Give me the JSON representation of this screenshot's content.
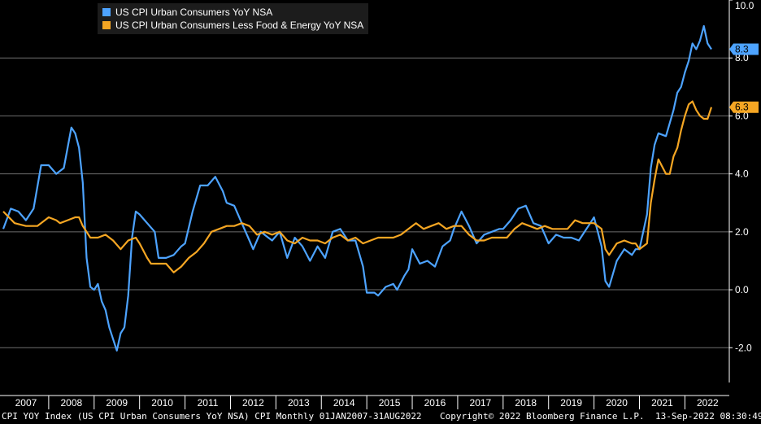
{
  "chart_data": {
    "type": "line",
    "title": "",
    "xlabel": "",
    "ylabel": "",
    "x_range": [
      "2007-01",
      "2022-08"
    ],
    "ylim": [
      -3.2,
      10.0
    ],
    "y_ticks": [
      "10.0",
      "8.0",
      "6.0",
      "4.0",
      "2.0",
      "0.0",
      "-2.0"
    ],
    "x_ticks": [
      "2007",
      "2008",
      "2009",
      "2010",
      "2011",
      "2012",
      "2013",
      "2014",
      "2015",
      "2016",
      "2017",
      "2018",
      "2019",
      "2020",
      "2021",
      "2022"
    ],
    "grid": "horizontal",
    "legend_position": "top-left",
    "series": [
      {
        "name": "US CPI Urban Consumers YoY NSA",
        "color": "#4da3ff",
        "last_label": "8.3",
        "points": [
          [
            "2007-01",
            2.1
          ],
          [
            "2007-03",
            2.8
          ],
          [
            "2007-05",
            2.7
          ],
          [
            "2007-07",
            2.4
          ],
          [
            "2007-09",
            2.8
          ],
          [
            "2007-11",
            4.3
          ],
          [
            "2008-01",
            4.3
          ],
          [
            "2008-03",
            4.0
          ],
          [
            "2008-05",
            4.2
          ],
          [
            "2008-07",
            5.6
          ],
          [
            "2008-08",
            5.4
          ],
          [
            "2008-09",
            4.9
          ],
          [
            "2008-10",
            3.7
          ],
          [
            "2008-11",
            1.1
          ],
          [
            "2008-12",
            0.1
          ],
          [
            "2009-01",
            0.0
          ],
          [
            "2009-02",
            0.2
          ],
          [
            "2009-03",
            -0.4
          ],
          [
            "2009-04",
            -0.7
          ],
          [
            "2009-05",
            -1.3
          ],
          [
            "2009-07",
            -2.1
          ],
          [
            "2009-08",
            -1.5
          ],
          [
            "2009-09",
            -1.3
          ],
          [
            "2009-10",
            -0.2
          ],
          [
            "2009-11",
            1.8
          ],
          [
            "2009-12",
            2.7
          ],
          [
            "2010-01",
            2.6
          ],
          [
            "2010-03",
            2.3
          ],
          [
            "2010-05",
            2.0
          ],
          [
            "2010-06",
            1.1
          ],
          [
            "2010-08",
            1.1
          ],
          [
            "2010-10",
            1.2
          ],
          [
            "2010-12",
            1.5
          ],
          [
            "2011-01",
            1.6
          ],
          [
            "2011-03",
            2.7
          ],
          [
            "2011-05",
            3.6
          ],
          [
            "2011-07",
            3.6
          ],
          [
            "2011-09",
            3.9
          ],
          [
            "2011-11",
            3.4
          ],
          [
            "2011-12",
            3.0
          ],
          [
            "2012-02",
            2.9
          ],
          [
            "2012-04",
            2.3
          ],
          [
            "2012-06",
            1.7
          ],
          [
            "2012-07",
            1.4
          ],
          [
            "2012-09",
            2.0
          ],
          [
            "2012-11",
            1.8
          ],
          [
            "2012-12",
            1.7
          ],
          [
            "2013-02",
            2.0
          ],
          [
            "2013-04",
            1.1
          ],
          [
            "2013-06",
            1.8
          ],
          [
            "2013-08",
            1.5
          ],
          [
            "2013-10",
            1.0
          ],
          [
            "2013-12",
            1.5
          ],
          [
            "2014-02",
            1.1
          ],
          [
            "2014-04",
            2.0
          ],
          [
            "2014-06",
            2.1
          ],
          [
            "2014-08",
            1.7
          ],
          [
            "2014-10",
            1.7
          ],
          [
            "2014-12",
            0.8
          ],
          [
            "2015-01",
            -0.1
          ],
          [
            "2015-03",
            -0.1
          ],
          [
            "2015-04",
            -0.2
          ],
          [
            "2015-06",
            0.1
          ],
          [
            "2015-08",
            0.2
          ],
          [
            "2015-09",
            0.0
          ],
          [
            "2015-11",
            0.5
          ],
          [
            "2015-12",
            0.7
          ],
          [
            "2016-01",
            1.4
          ],
          [
            "2016-03",
            0.9
          ],
          [
            "2016-05",
            1.0
          ],
          [
            "2016-07",
            0.8
          ],
          [
            "2016-09",
            1.5
          ],
          [
            "2016-11",
            1.7
          ],
          [
            "2016-12",
            2.1
          ],
          [
            "2017-02",
            2.7
          ],
          [
            "2017-04",
            2.2
          ],
          [
            "2017-06",
            1.6
          ],
          [
            "2017-08",
            1.9
          ],
          [
            "2017-10",
            2.0
          ],
          [
            "2017-12",
            2.1
          ],
          [
            "2018-01",
            2.1
          ],
          [
            "2018-03",
            2.4
          ],
          [
            "2018-05",
            2.8
          ],
          [
            "2018-07",
            2.9
          ],
          [
            "2018-09",
            2.3
          ],
          [
            "2018-11",
            2.2
          ],
          [
            "2018-12",
            1.9
          ],
          [
            "2019-01",
            1.6
          ],
          [
            "2019-03",
            1.9
          ],
          [
            "2019-05",
            1.8
          ],
          [
            "2019-07",
            1.8
          ],
          [
            "2019-09",
            1.7
          ],
          [
            "2019-11",
            2.1
          ],
          [
            "2019-12",
            2.3
          ],
          [
            "2020-01",
            2.5
          ],
          [
            "2020-03",
            1.5
          ],
          [
            "2020-04",
            0.3
          ],
          [
            "2020-05",
            0.1
          ],
          [
            "2020-07",
            1.0
          ],
          [
            "2020-09",
            1.4
          ],
          [
            "2020-11",
            1.2
          ],
          [
            "2020-12",
            1.4
          ],
          [
            "2021-01",
            1.4
          ],
          [
            "2021-03",
            2.6
          ],
          [
            "2021-04",
            4.2
          ],
          [
            "2021-05",
            5.0
          ],
          [
            "2021-06",
            5.4
          ],
          [
            "2021-08",
            5.3
          ],
          [
            "2021-10",
            6.2
          ],
          [
            "2021-11",
            6.8
          ],
          [
            "2021-12",
            7.0
          ],
          [
            "2022-01",
            7.5
          ],
          [
            "2022-02",
            7.9
          ],
          [
            "2022-03",
            8.5
          ],
          [
            "2022-04",
            8.3
          ],
          [
            "2022-05",
            8.6
          ],
          [
            "2022-06",
            9.1
          ],
          [
            "2022-07",
            8.5
          ],
          [
            "2022-08",
            8.3
          ]
        ]
      },
      {
        "name": "US CPI Urban Consumers Less Food & Energy YoY NSA",
        "color": "#f5a623",
        "last_label": "6.3",
        "points": [
          [
            "2007-01",
            2.7
          ],
          [
            "2007-04",
            2.3
          ],
          [
            "2007-07",
            2.2
          ],
          [
            "2007-10",
            2.2
          ],
          [
            "2007-12",
            2.4
          ],
          [
            "2008-01",
            2.5
          ],
          [
            "2008-03",
            2.4
          ],
          [
            "2008-04",
            2.3
          ],
          [
            "2008-06",
            2.4
          ],
          [
            "2008-08",
            2.5
          ],
          [
            "2008-09",
            2.5
          ],
          [
            "2008-10",
            2.2
          ],
          [
            "2008-11",
            2.0
          ],
          [
            "2008-12",
            1.8
          ],
          [
            "2009-02",
            1.8
          ],
          [
            "2009-04",
            1.9
          ],
          [
            "2009-06",
            1.7
          ],
          [
            "2009-08",
            1.4
          ],
          [
            "2009-10",
            1.7
          ],
          [
            "2009-12",
            1.8
          ],
          [
            "2010-01",
            1.6
          ],
          [
            "2010-03",
            1.1
          ],
          [
            "2010-04",
            0.9
          ],
          [
            "2010-06",
            0.9
          ],
          [
            "2010-08",
            0.9
          ],
          [
            "2010-10",
            0.6
          ],
          [
            "2010-12",
            0.8
          ],
          [
            "2011-02",
            1.1
          ],
          [
            "2011-04",
            1.3
          ],
          [
            "2011-06",
            1.6
          ],
          [
            "2011-08",
            2.0
          ],
          [
            "2011-10",
            2.1
          ],
          [
            "2011-12",
            2.2
          ],
          [
            "2012-02",
            2.2
          ],
          [
            "2012-04",
            2.3
          ],
          [
            "2012-06",
            2.2
          ],
          [
            "2012-08",
            1.9
          ],
          [
            "2012-10",
            2.0
          ],
          [
            "2012-12",
            1.9
          ],
          [
            "2013-02",
            2.0
          ],
          [
            "2013-04",
            1.7
          ],
          [
            "2013-06",
            1.6
          ],
          [
            "2013-08",
            1.8
          ],
          [
            "2013-10",
            1.7
          ],
          [
            "2013-12",
            1.7
          ],
          [
            "2014-02",
            1.6
          ],
          [
            "2014-04",
            1.8
          ],
          [
            "2014-06",
            1.9
          ],
          [
            "2014-08",
            1.7
          ],
          [
            "2014-10",
            1.8
          ],
          [
            "2014-12",
            1.6
          ],
          [
            "2015-02",
            1.7
          ],
          [
            "2015-04",
            1.8
          ],
          [
            "2015-06",
            1.8
          ],
          [
            "2015-08",
            1.8
          ],
          [
            "2015-10",
            1.9
          ],
          [
            "2015-12",
            2.1
          ],
          [
            "2016-02",
            2.3
          ],
          [
            "2016-04",
            2.1
          ],
          [
            "2016-06",
            2.2
          ],
          [
            "2016-08",
            2.3
          ],
          [
            "2016-10",
            2.1
          ],
          [
            "2016-12",
            2.2
          ],
          [
            "2017-02",
            2.2
          ],
          [
            "2017-04",
            1.9
          ],
          [
            "2017-06",
            1.7
          ],
          [
            "2017-08",
            1.7
          ],
          [
            "2017-10",
            1.8
          ],
          [
            "2017-12",
            1.8
          ],
          [
            "2018-02",
            1.8
          ],
          [
            "2018-04",
            2.1
          ],
          [
            "2018-06",
            2.3
          ],
          [
            "2018-08",
            2.2
          ],
          [
            "2018-10",
            2.1
          ],
          [
            "2018-12",
            2.2
          ],
          [
            "2019-02",
            2.1
          ],
          [
            "2019-04",
            2.1
          ],
          [
            "2019-06",
            2.1
          ],
          [
            "2019-08",
            2.4
          ],
          [
            "2019-10",
            2.3
          ],
          [
            "2019-12",
            2.3
          ],
          [
            "2020-01",
            2.3
          ],
          [
            "2020-03",
            2.1
          ],
          [
            "2020-04",
            1.4
          ],
          [
            "2020-05",
            1.2
          ],
          [
            "2020-07",
            1.6
          ],
          [
            "2020-09",
            1.7
          ],
          [
            "2020-11",
            1.6
          ],
          [
            "2020-12",
            1.6
          ],
          [
            "2021-01",
            1.4
          ],
          [
            "2021-03",
            1.6
          ],
          [
            "2021-04",
            3.0
          ],
          [
            "2021-05",
            3.8
          ],
          [
            "2021-06",
            4.5
          ],
          [
            "2021-08",
            4.0
          ],
          [
            "2021-09",
            4.0
          ],
          [
            "2021-10",
            4.6
          ],
          [
            "2021-11",
            4.9
          ],
          [
            "2021-12",
            5.5
          ],
          [
            "2022-01",
            6.0
          ],
          [
            "2022-02",
            6.4
          ],
          [
            "2022-03",
            6.5
          ],
          [
            "2022-04",
            6.2
          ],
          [
            "2022-05",
            6.0
          ],
          [
            "2022-06",
            5.9
          ],
          [
            "2022-07",
            5.9
          ],
          [
            "2022-08",
            6.3
          ]
        ]
      }
    ]
  },
  "footer": {
    "left": "CPI YOY Index (US CPI Urban Consumers YoY NSA) CPI  Monthly 01JAN2007-31AUG2022",
    "center": "Copyright© 2022 Bloomberg Finance L.P.",
    "right": "13-Sep-2022 08:30:49"
  }
}
